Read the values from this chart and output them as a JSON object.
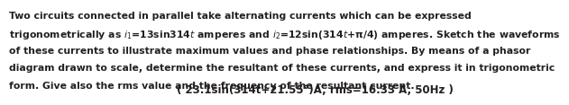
{
  "bg_color": "#ffffff",
  "text_color": "#231f20",
  "font_size_body": 7.85,
  "font_size_answer": 8.5,
  "line1": "Two circuits connected in parallel take alternating currents which can be expressed",
  "line2_pre": "trigonometrically as ",
  "line2_i1": "i",
  "line2_sub1": "1",
  "line2_mid": "=13sin314",
  "line2_t1": "t",
  "line2_and": " amperes and ",
  "line2_i2": "i",
  "line2_sub2": "2",
  "line2_eq": "=12sin(314",
  "line2_t2": "t",
  "line2_pi": "+π/4) amperes. Sketch the waveforms",
  "line3": "of these currents to illustrate maximum values and phase relationships. By means of a phasor",
  "line4": "diagram drawn to scale, determine the resultant of these currents, and express it in trigonometric",
  "line5": "form. Give also the rms value and the frequency of the resultant current.",
  "answer": "( 23.1sin(314t+21.55°)A, rms=16.33 A, 50Hz )"
}
